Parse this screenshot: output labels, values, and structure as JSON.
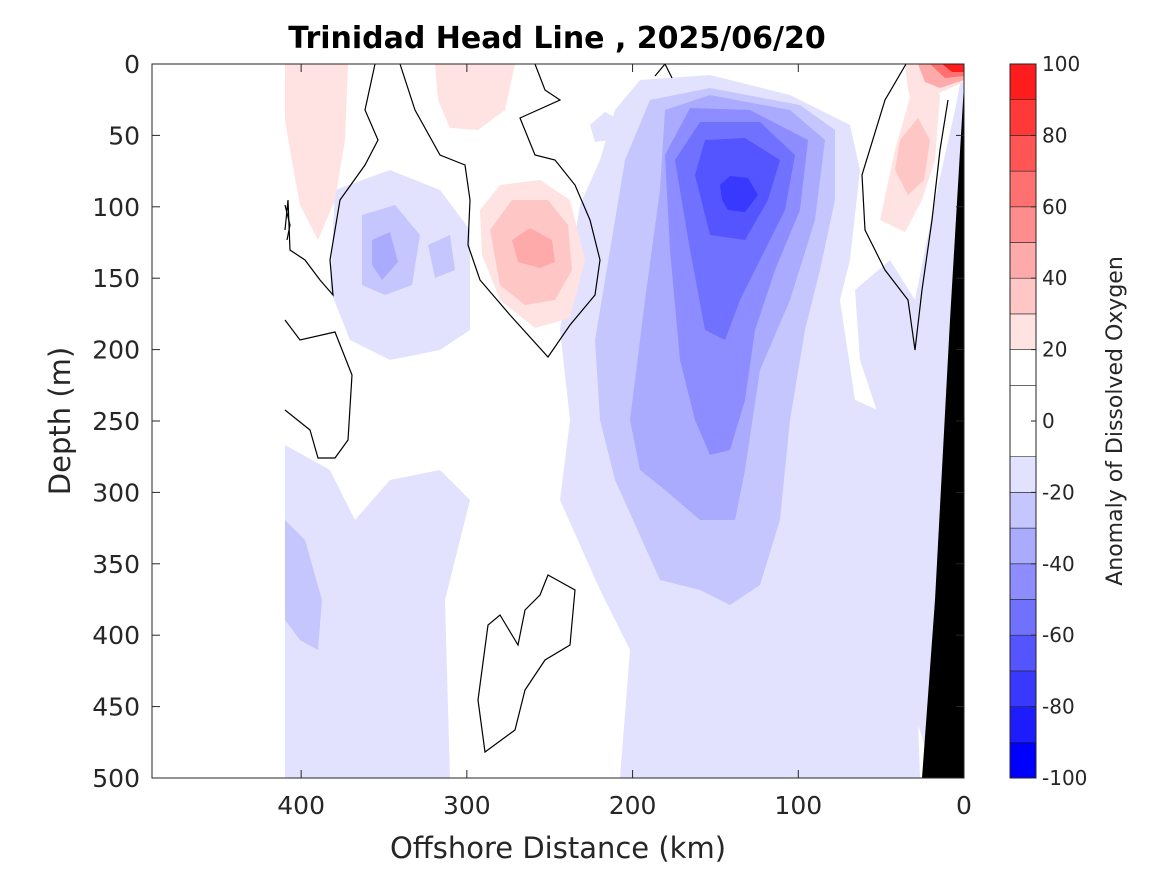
{
  "chart_data": {
    "type": "heatmap",
    "subtype": "filled-contour",
    "title": "Trinidad Head Line , 2025/06/20",
    "xlabel": "Offshore Distance (km)",
    "ylabel": "Depth (m)",
    "colorbar_label": "Anomaly of Dissolved Oxygen",
    "xlim": [
      490,
      0
    ],
    "x_reversed": true,
    "ylim": [
      0,
      500
    ],
    "y_reversed": true,
    "xticks": [
      400,
      300,
      200,
      100,
      0
    ],
    "yticks": [
      0,
      50,
      100,
      150,
      200,
      250,
      300,
      350,
      400,
      450,
      500
    ],
    "colorbar": {
      "range": [
        -100,
        100
      ],
      "ticks": [
        100,
        80,
        60,
        40,
        20,
        0,
        -20,
        -40,
        -60,
        -80,
        -100
      ],
      "levels": [
        -100,
        -90,
        -80,
        -70,
        -60,
        -50,
        -40,
        -30,
        -20,
        -10,
        10,
        20,
        30,
        40,
        50,
        60,
        70,
        80,
        90,
        100
      ],
      "colors": [
        "#0000ff",
        "#1c1cff",
        "#3838ff",
        "#5555ff",
        "#7171ff",
        "#8d8dff",
        "#aaaaff",
        "#c6c6ff",
        "#e2e2ff",
        "#ffffff",
        "#ffffff",
        "#ffe2e2",
        "#ffc6c6",
        "#ffaaaa",
        "#ff8d8d",
        "#ff7171",
        "#ff5555",
        "#ff3838",
        "#ff1c1c",
        "#ff0000"
      ]
    },
    "data_coverage_x": [
      0,
      410
    ],
    "bathymetry_color": "#000000",
    "bathymetry": [
      [
        0,
        12
      ],
      [
        0,
        500
      ],
      [
        25,
        500
      ]
    ],
    "features": [
      {
        "name": "nearshore surface maximum",
        "x": 12,
        "y": 5,
        "value": 100
      },
      {
        "name": "nearshore subsurface high",
        "x": 28,
        "y": 80,
        "value": 30
      },
      {
        "name": "mid-shelf high",
        "x": 262,
        "y": 125,
        "value": 30
      },
      {
        "name": "offshore surface high",
        "x": 395,
        "y": 40,
        "value": 10
      },
      {
        "name": "surface high near 270 km",
        "x": 272,
        "y": 25,
        "value": 10
      },
      {
        "name": "subsurface minimum core",
        "x": 140,
        "y": 95,
        "value": -80
      },
      {
        "name": "offshore minimum",
        "x": 350,
        "y": 140,
        "value": -40
      },
      {
        "name": "deep offshore minimum",
        "x": 395,
        "y": 385,
        "value": -30
      }
    ]
  }
}
